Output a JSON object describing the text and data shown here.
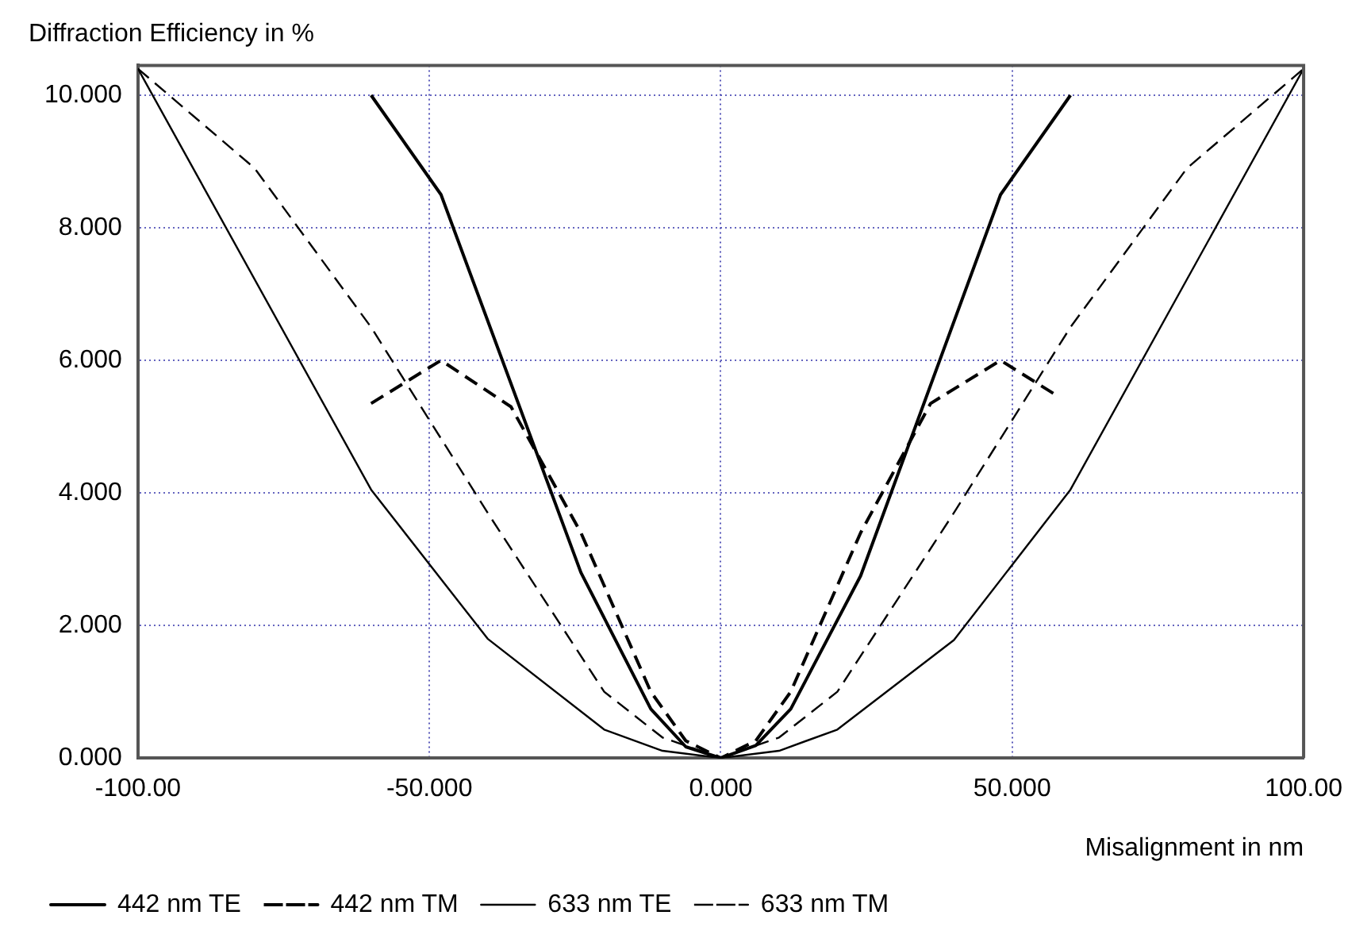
{
  "chart_data": {
    "type": "line",
    "xlabel": "Misalignment in nm",
    "ylabel": "Diffraction Efficiency in %",
    "xlim": [
      -100,
      100
    ],
    "ylim": [
      0,
      10.45
    ],
    "xticks": [
      {
        "value": -100,
        "label": "-100.00"
      },
      {
        "value": -50,
        "label": "-50.000"
      },
      {
        "value": 0,
        "label": "0.000"
      },
      {
        "value": 50,
        "label": "50.000"
      },
      {
        "value": 100,
        "label": "100.00"
      }
    ],
    "yticks": [
      {
        "value": 0,
        "label": "0.000"
      },
      {
        "value": 2,
        "label": "2.000"
      },
      {
        "value": 4,
        "label": "4.000"
      },
      {
        "value": 6,
        "label": "6.000"
      },
      {
        "value": 8,
        "label": "8.000"
      },
      {
        "value": 10,
        "label": "10.000"
      }
    ],
    "grid": true,
    "legend": "bottom",
    "marker": "none",
    "series": [
      {
        "name": "442 nm TE",
        "color": "#000000",
        "line_style": "solid",
        "x": [
          -60,
          -48,
          -24,
          -12,
          -6,
          0,
          6,
          12,
          24,
          48,
          60
        ],
        "values": [
          10.0,
          8.5,
          2.8,
          0.74,
          0.17,
          0,
          0.19,
          0.74,
          2.75,
          8.5,
          10.0
        ]
      },
      {
        "name": "442 nm TM",
        "color": "#000000",
        "line_style": "dashed",
        "x": [
          -60,
          -48,
          -36,
          -24,
          -12,
          -6,
          0,
          6,
          12,
          24,
          36,
          48,
          58
        ],
        "values": [
          5.35,
          6.0,
          5.3,
          3.4,
          1.0,
          0.26,
          0,
          0.26,
          1.0,
          3.4,
          5.35,
          6.0,
          5.45
        ]
      },
      {
        "name": "633 nm TE",
        "color": "#000000",
        "line_style": "solid",
        "x": [
          -100,
          -60,
          -40,
          -20,
          -10,
          0,
          10,
          20,
          40,
          60,
          100
        ],
        "values": [
          10.4,
          4.05,
          1.8,
          0.43,
          0.11,
          0,
          0.11,
          0.43,
          1.78,
          4.05,
          10.4
        ]
      },
      {
        "name": "633 nm TM",
        "color": "#000000",
        "line_style": "dashed",
        "x": [
          -100,
          -80,
          -60,
          -40,
          -20,
          -10,
          0,
          10,
          20,
          40,
          60,
          80,
          100
        ],
        "values": [
          10.4,
          8.9,
          6.5,
          3.7,
          1.0,
          0.31,
          0,
          0.31,
          1.0,
          3.7,
          6.5,
          8.9,
          10.4
        ]
      }
    ]
  }
}
